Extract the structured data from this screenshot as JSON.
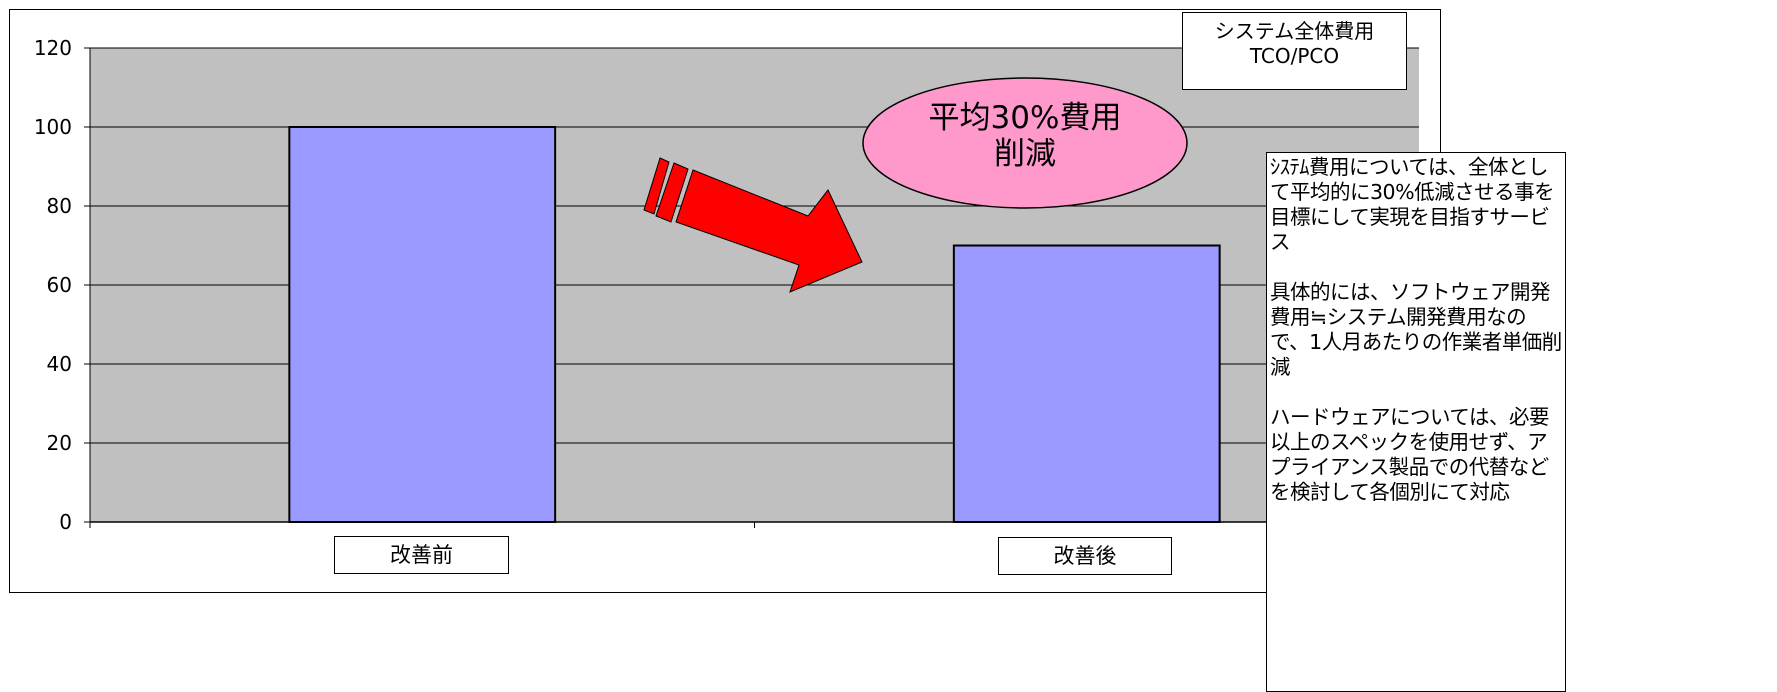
{
  "chart_data": {
    "type": "bar",
    "categories": [
      "改善前",
      "改善後"
    ],
    "values": [
      100,
      70
    ],
    "ylim": [
      0,
      120
    ],
    "yticks": [
      0,
      20,
      40,
      60,
      80,
      100,
      120
    ],
    "grid": true,
    "legend": {
      "placement": "top-right",
      "lines": [
        "システム全体費用",
        "TCO/PCO"
      ]
    }
  },
  "annotations": {
    "callout": "平均30%費用\n削減",
    "side_note": "ｼｽﾃﾑ費用については、全体として平均的に30%低減させる事を目標にして実現を目指すサービス\n\n具体的には、ソフトウェア開発費用≒システム開発費用なので、1人月あたりの作業者単価削減\n\nハードウェアについては、必要以上のスペックを使用せず、アプライアンス製品での代替など\nを検討して各個別にて対応"
  },
  "colors": {
    "plot_background": "#c0c0c0",
    "bar_fill": "#9999ff",
    "callout_fill": "#ff99cc",
    "arrow_fill": "#ff0000"
  }
}
